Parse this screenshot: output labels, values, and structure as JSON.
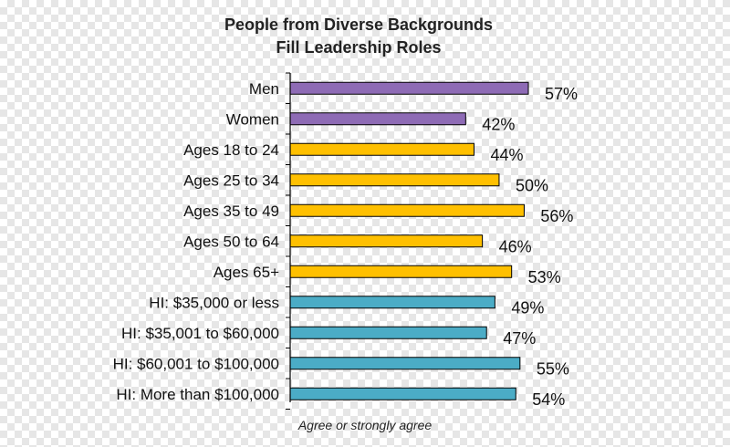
{
  "chart_data": {
    "type": "bar",
    "orientation": "horizontal",
    "title": "People from Diverse Backgrounds",
    "subtitle": "Fill Leadership Roles",
    "xlabel": "Agree or strongly agree",
    "ylabel": "",
    "xlim": [
      0,
      100
    ],
    "grid": false,
    "legend": "none",
    "categories": [
      "Men",
      "Women",
      "Ages 18 to 24",
      "Ages 25 to 34",
      "Ages 35 to 49",
      "Ages 50 to 64",
      "Ages 65+",
      "HI: $35,000 or less",
      "HI: $35,001 to $60,000",
      "HI: $60,001 to $100,000",
      "HI: More than $100,000"
    ],
    "values": [
      57,
      42,
      44,
      50,
      56,
      46,
      53,
      49,
      47,
      55,
      54
    ],
    "value_labels": [
      "57%",
      "42%",
      "44%",
      "50%",
      "56%",
      "46%",
      "53%",
      "49%",
      "47%",
      "55%",
      "54%"
    ],
    "bar_colors": [
      "#8e6bb5",
      "#8e6bb5",
      "#ffc000",
      "#ffc000",
      "#ffc000",
      "#ffc000",
      "#ffc000",
      "#4bacc6",
      "#4bacc6",
      "#4bacc6",
      "#4bacc6"
    ],
    "bar_outline": "#000000",
    "axis_color": "#000000"
  }
}
